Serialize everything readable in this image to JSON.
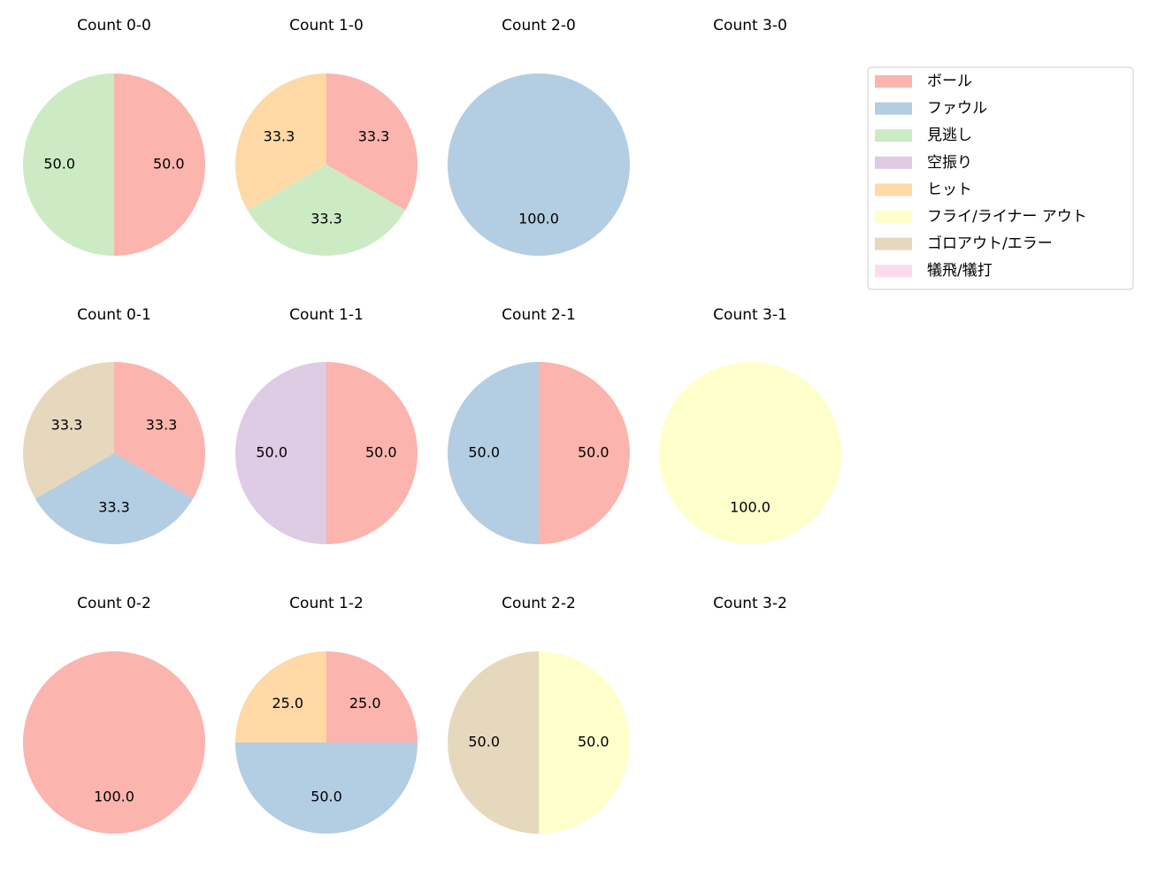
{
  "legend": {
    "entries": [
      {
        "name": "ボール",
        "color": "#fbb4ae"
      },
      {
        "name": "ファウル",
        "color": "#b3cde3"
      },
      {
        "name": "見逃し",
        "color": "#ccebc5"
      },
      {
        "name": "空振り",
        "color": "#decbe4"
      },
      {
        "name": "ヒット",
        "color": "#fed9a6"
      },
      {
        "name": "フライ/ライナー アウト",
        "color": "#ffffcc"
      },
      {
        "name": "ゴロアウト/エラー",
        "color": "#e5d8bd"
      },
      {
        "name": "犠飛/犠打",
        "color": "#fddaec"
      }
    ]
  },
  "chart_data": [
    {
      "type": "pie",
      "title": "Count 0-0",
      "categories": [
        "ボール",
        "見逃し"
      ],
      "values": [
        50,
        50
      ],
      "value_labels": [
        "50.0",
        "50.0"
      ]
    },
    {
      "type": "pie",
      "title": "Count 1-0",
      "categories": [
        "ボール",
        "見逃し",
        "ヒット"
      ],
      "values": [
        33.3,
        33.3,
        33.3
      ],
      "value_labels": [
        "33.3",
        "33.3",
        "33.3"
      ]
    },
    {
      "type": "pie",
      "title": "Count 2-0",
      "categories": [
        "ファウル"
      ],
      "values": [
        100
      ],
      "value_labels": [
        "100.0"
      ]
    },
    {
      "type": "pie",
      "title": "Count 3-0",
      "categories": [],
      "values": [],
      "value_labels": []
    },
    {
      "type": "pie",
      "title": "Count 0-1",
      "categories": [
        "ボール",
        "ファウル",
        "ゴロアウト/エラー"
      ],
      "values": [
        33.3,
        33.3,
        33.3
      ],
      "value_labels": [
        "33.3",
        "33.3",
        "33.3"
      ]
    },
    {
      "type": "pie",
      "title": "Count 1-1",
      "categories": [
        "ボール",
        "空振り"
      ],
      "values": [
        50,
        50
      ],
      "value_labels": [
        "50.0",
        "50.0"
      ]
    },
    {
      "type": "pie",
      "title": "Count 2-1",
      "categories": [
        "ボール",
        "ファウル"
      ],
      "values": [
        50,
        50
      ],
      "value_labels": [
        "50.0",
        "50.0"
      ]
    },
    {
      "type": "pie",
      "title": "Count 3-1",
      "categories": [
        "フライ/ライナー アウト"
      ],
      "values": [
        100
      ],
      "value_labels": [
        "100.0"
      ]
    },
    {
      "type": "pie",
      "title": "Count 0-2",
      "categories": [
        "ボール"
      ],
      "values": [
        100
      ],
      "value_labels": [
        "100.0"
      ]
    },
    {
      "type": "pie",
      "title": "Count 1-2",
      "categories": [
        "ボール",
        "ファウル",
        "ヒット"
      ],
      "values": [
        25,
        50,
        25
      ],
      "value_labels": [
        "25.0",
        "50.0",
        "25.0"
      ]
    },
    {
      "type": "pie",
      "title": "Count 2-2",
      "categories": [
        "フライ/ライナー アウト",
        "ゴロアウト/エラー"
      ],
      "values": [
        50,
        50
      ],
      "value_labels": [
        "50.0",
        "50.0"
      ]
    },
    {
      "type": "pie",
      "title": "Count 3-2",
      "categories": [],
      "values": [],
      "value_labels": []
    }
  ]
}
